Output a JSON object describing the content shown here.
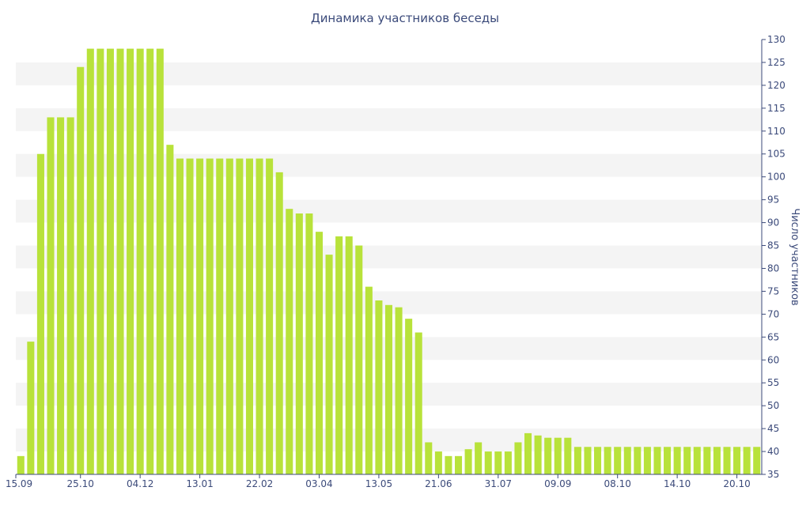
{
  "chart_data": {
    "type": "bar",
    "title": "Динамика участников беседы",
    "xlabel": "",
    "ylabel": "Число участников",
    "ylim": [
      35,
      130
    ],
    "ytick_step": 5,
    "grid": "alternating horizontal bands",
    "colors": {
      "bar": "#b8e23a",
      "band": "#f4f4f4",
      "text": "#3b4a7a",
      "axis": "#3b4a7a"
    },
    "x_tick_labels": [
      {
        "label": "15.09",
        "index": 0
      },
      {
        "label": "25.10",
        "index": 6
      },
      {
        "label": "04.12",
        "index": 12
      },
      {
        "label": "13.01",
        "index": 18
      },
      {
        "label": "22.02",
        "index": 24
      },
      {
        "label": "03.04",
        "index": 30
      },
      {
        "label": "13.05",
        "index": 36
      },
      {
        "label": "21.06",
        "index": 42
      },
      {
        "label": "31.07",
        "index": 48
      },
      {
        "label": "09.09",
        "index": 54
      },
      {
        "label": "08.10",
        "index": 60
      },
      {
        "label": "14.10",
        "index": 66
      },
      {
        "label": "20.10",
        "index": 72
      }
    ],
    "values": [
      39,
      64,
      105,
      113,
      113,
      113,
      124,
      128,
      128,
      128,
      128,
      128,
      128,
      128,
      128,
      107,
      104,
      104,
      104,
      104,
      104,
      104,
      104,
      104,
      104,
      104,
      101,
      93,
      92,
      92,
      88,
      83,
      87,
      87,
      85,
      76,
      73,
      72,
      71.5,
      69,
      66,
      42,
      40,
      39,
      39,
      40.5,
      42,
      40,
      40,
      40,
      42,
      44,
      43.5,
      43,
      43,
      43,
      41,
      41,
      41,
      41,
      41,
      41,
      41,
      41,
      41,
      41,
      41,
      41,
      41,
      41,
      41,
      41,
      41,
      41,
      41
    ]
  }
}
